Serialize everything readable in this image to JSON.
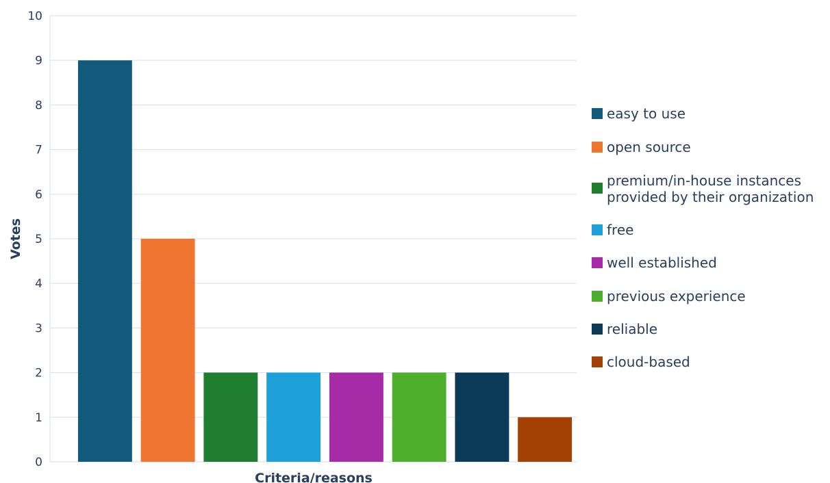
{
  "chart_data": {
    "type": "bar",
    "title": "",
    "xlabel": "Criteria/reasons",
    "ylabel": "Votes",
    "ylim": [
      0,
      10
    ],
    "yticks": [
      0,
      1,
      2,
      3,
      4,
      5,
      6,
      7,
      8,
      9,
      10
    ],
    "grid": true,
    "legend_position": "right",
    "series": [
      {
        "name": "easy to use",
        "value": 9,
        "color": "#135a7d"
      },
      {
        "name": "open source",
        "value": 5,
        "color": "#ef7530"
      },
      {
        "name": "premium/in-house instances provided by their organization",
        "label_lines": [
          "premium/in-house instances",
          "provided by their organization"
        ],
        "value": 2,
        "color": "#207e30"
      },
      {
        "name": "free",
        "value": 2,
        "color": "#1da1d8"
      },
      {
        "name": "well established",
        "value": 2,
        "color": "#a52ca6"
      },
      {
        "name": "previous experience",
        "value": 2,
        "color": "#4daf2c"
      },
      {
        "name": "reliable",
        "value": 2,
        "color": "#0c3a59"
      },
      {
        "name": "cloud-based",
        "value": 1,
        "color": "#a44104"
      }
    ]
  }
}
